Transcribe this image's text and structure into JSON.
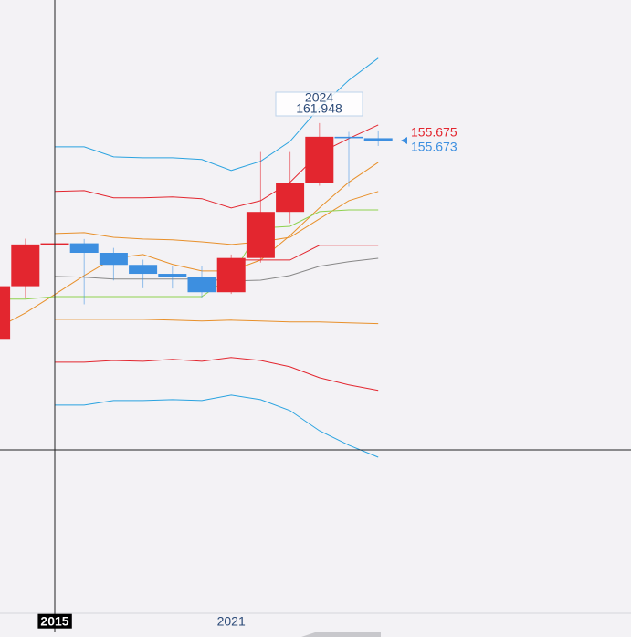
{
  "chart_data": {
    "type": "candlestick",
    "categories": [
      null,
      null,
      "2015",
      null,
      null,
      null,
      null,
      null,
      "2021",
      null,
      null,
      null,
      null,
      null
    ],
    "open": [
      86.7,
      105.3,
      119.8,
      120.2,
      116.9,
      112.7,
      109.6,
      108.6,
      103.2,
      115.1,
      131.1,
      141.0,
      157.2,
      156.7
    ],
    "high": [
      105.4,
      121.8,
      125.9,
      121.7,
      118.6,
      114.5,
      112.4,
      112.2,
      116.3,
      151.9,
      151.9,
      161.948,
      158.9,
      159.4
    ],
    "low": [
      85.6,
      101.0,
      116.0,
      99.0,
      107.3,
      104.6,
      104.5,
      101.2,
      102.6,
      113.5,
      127.2,
      140.2,
      139.9,
      154.0
    ],
    "close": [
      105.3,
      119.8,
      120.2,
      116.9,
      112.7,
      109.6,
      108.6,
      103.2,
      115.1,
      131.1,
      141.0,
      157.2,
      156.7,
      155.673
    ],
    "up_color": "#e3262f",
    "down_color": "#3d8fe0",
    "ylim": [
      -8.3,
      204.7
    ],
    "overlays": [
      {
        "color": "#2aa3e0",
        "values": [
          null,
          null,
          153.7,
          153.7,
          150.2,
          149.9,
          149.9,
          149.3,
          145.5,
          148.7,
          155.6,
          167.3,
          176.8,
          184.5
        ]
      },
      {
        "color": "#e3262f",
        "values": [
          null,
          null,
          138.2,
          138.5,
          136.0,
          136.0,
          136.3,
          135.7,
          132.5,
          135.0,
          141.4,
          151.5,
          156.6,
          161.3
        ]
      },
      {
        "color": "#e8902a",
        "values": [
          null,
          null,
          123.6,
          123.9,
          122.3,
          121.7,
          121.4,
          120.7,
          119.8,
          120.7,
          122.3,
          128.7,
          135.0,
          138.2
        ]
      },
      {
        "color": "#888888",
        "values": [
          null,
          null,
          108.7,
          108.4,
          107.8,
          107.8,
          107.8,
          107.8,
          107.1,
          107.4,
          109.0,
          112.2,
          113.8,
          115.0
        ]
      },
      {
        "color": "#e8902a",
        "values": [
          null,
          null,
          93.8,
          93.8,
          93.8,
          93.8,
          93.5,
          93.2,
          93.5,
          93.2,
          92.9,
          92.9,
          92.6,
          92.3
        ]
      },
      {
        "color": "#e3262f",
        "values": [
          null,
          null,
          78.9,
          78.9,
          79.5,
          79.2,
          79.9,
          79.2,
          80.5,
          79.5,
          77.3,
          73.5,
          71.0,
          69.1
        ]
      },
      {
        "color": "#2aa3e0",
        "values": [
          null,
          null,
          64.0,
          64.0,
          65.6,
          65.6,
          65.9,
          65.6,
          67.5,
          65.9,
          62.1,
          55.1,
          50.1,
          45.9
        ]
      },
      {
        "color": "#e8902a",
        "values": [
          90.6,
          96.0,
          102.4,
          109.0,
          115.0,
          116.3,
          112.9,
          110.6,
          110.6,
          114.4,
          122.9,
          132.5,
          141.4,
          148.3
        ]
      },
      {
        "color": "#8fd14f",
        "values": [
          100.8,
          100.8,
          101.7,
          101.7,
          101.7,
          101.7,
          101.7,
          101.7,
          108.7,
          125.5,
          126.1,
          131.2,
          131.8,
          131.8
        ]
      },
      {
        "color": "#e3262f",
        "values": [
          null,
          null,
          null,
          null,
          null,
          null,
          null,
          null,
          114.4,
          114.4,
          114.4,
          119.5,
          119.5,
          119.5
        ]
      }
    ],
    "tooltip": {
      "label": "2024",
      "value": 161.948
    },
    "price_tags": [
      {
        "value": 155.675,
        "color": "#e3262f"
      },
      {
        "value": 155.673,
        "color": "#3d8fe0"
      }
    ]
  }
}
